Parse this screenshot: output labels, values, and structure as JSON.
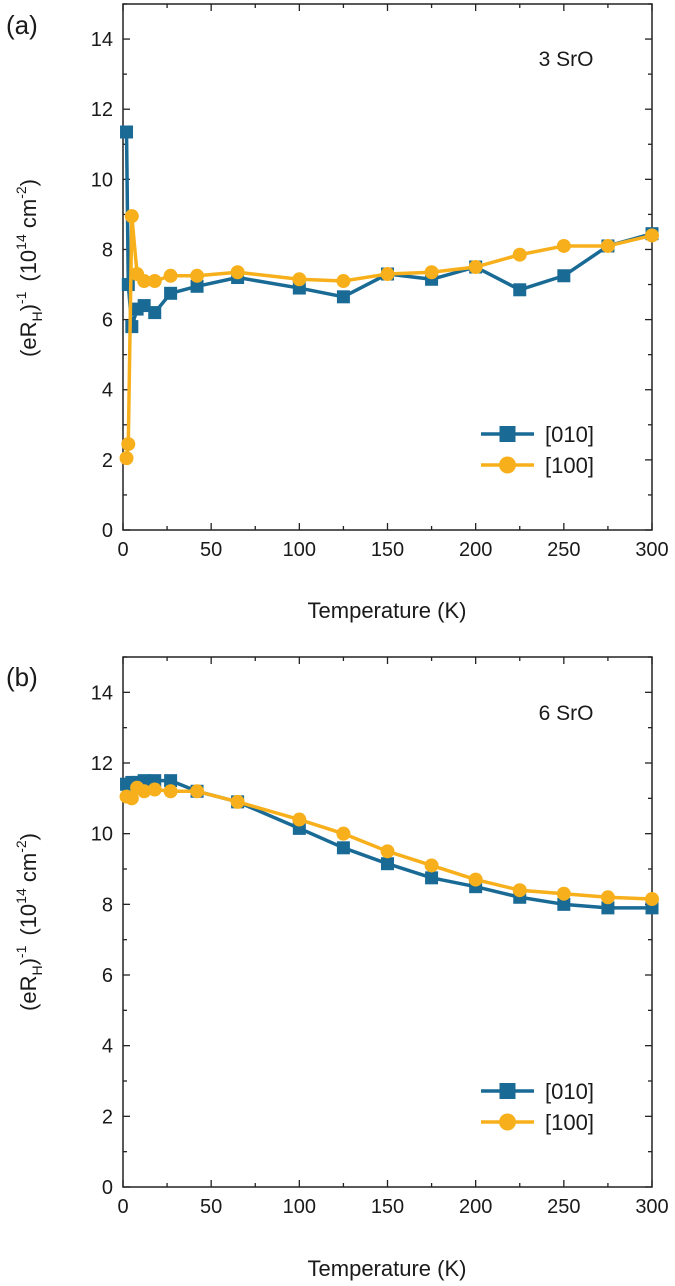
{
  "chart_data": [
    {
      "type": "line",
      "panel_label": "(a)",
      "annotation": "3 SrO",
      "xlabel": "Temperature (K)",
      "ylabel": {
        "prefix": "(eR",
        "sub": "H",
        "mid": ")",
        "sup1": "-1",
        "unit_pre": "(10",
        "sup2": "14",
        "unit_mid": " cm",
        "sup3": "-2",
        "unit_post": ")"
      },
      "xlim": [
        0,
        300
      ],
      "ylim": [
        0,
        15
      ],
      "xticks": [
        "0",
        "50",
        "100",
        "150",
        "200",
        "250",
        "300"
      ],
      "yticks": [
        "0",
        "2",
        "4",
        "6",
        "8",
        "10",
        "12",
        "14"
      ],
      "legend_position": "bottom-right",
      "series": [
        {
          "name": "[010]",
          "color": "#1a6a96",
          "marker": "square",
          "points": [
            [
              2,
              11.35
            ],
            [
              3,
              7.0
            ],
            [
              5,
              5.8
            ],
            [
              8,
              6.3
            ],
            [
              12,
              6.4
            ],
            [
              18,
              6.2
            ],
            [
              27,
              6.75
            ],
            [
              42,
              6.95
            ],
            [
              65,
              7.2
            ],
            [
              100,
              6.9
            ],
            [
              125,
              6.65
            ],
            [
              150,
              7.3
            ],
            [
              175,
              7.15
            ],
            [
              200,
              7.5
            ],
            [
              225,
              6.85
            ],
            [
              250,
              7.25
            ],
            [
              275,
              8.1
            ],
            [
              300,
              8.45
            ]
          ]
        },
        {
          "name": "[100]",
          "color": "#f7b01c",
          "marker": "circle",
          "points": [
            [
              2,
              2.05
            ],
            [
              3,
              2.45
            ],
            [
              5,
              8.95
            ],
            [
              8,
              7.3
            ],
            [
              12,
              7.1
            ],
            [
              18,
              7.1
            ],
            [
              27,
              7.25
            ],
            [
              42,
              7.25
            ],
            [
              65,
              7.35
            ],
            [
              100,
              7.15
            ],
            [
              125,
              7.1
            ],
            [
              150,
              7.3
            ],
            [
              175,
              7.35
            ],
            [
              200,
              7.5
            ],
            [
              225,
              7.85
            ],
            [
              250,
              8.1
            ],
            [
              275,
              8.1
            ],
            [
              300,
              8.4
            ]
          ]
        }
      ]
    },
    {
      "type": "line",
      "panel_label": "(b)",
      "annotation": "6 SrO",
      "xlabel": "Temperature (K)",
      "ylabel": {
        "prefix": "(eR",
        "sub": "H",
        "mid": ")",
        "sup1": "-1",
        "unit_pre": "(10",
        "sup2": "14",
        "unit_mid": " cm",
        "sup3": "-2",
        "unit_post": ")"
      },
      "xlim": [
        0,
        300
      ],
      "ylim": [
        0,
        15
      ],
      "xticks": [
        "0",
        "50",
        "100",
        "150",
        "200",
        "250",
        "300"
      ],
      "yticks": [
        "0",
        "2",
        "4",
        "6",
        "8",
        "10",
        "12",
        "14"
      ],
      "legend_position": "bottom-right",
      "series": [
        {
          "name": "[010]",
          "color": "#1a6a96",
          "marker": "square",
          "points": [
            [
              2,
              11.4
            ],
            [
              5,
              11.45
            ],
            [
              8,
              11.45
            ],
            [
              12,
              11.5
            ],
            [
              18,
              11.5
            ],
            [
              27,
              11.5
            ],
            [
              42,
              11.2
            ],
            [
              65,
              10.9
            ],
            [
              100,
              10.15
            ],
            [
              125,
              9.6
            ],
            [
              150,
              9.15
            ],
            [
              175,
              8.75
            ],
            [
              200,
              8.5
            ],
            [
              225,
              8.2
            ],
            [
              250,
              8.0
            ],
            [
              275,
              7.9
            ],
            [
              300,
              7.9
            ]
          ]
        },
        {
          "name": "[100]",
          "color": "#f7b01c",
          "marker": "circle",
          "points": [
            [
              2,
              11.05
            ],
            [
              5,
              11.0
            ],
            [
              8,
              11.3
            ],
            [
              12,
              11.2
            ],
            [
              18,
              11.25
            ],
            [
              27,
              11.2
            ],
            [
              42,
              11.2
            ],
            [
              65,
              10.9
            ],
            [
              100,
              10.4
            ],
            [
              125,
              10.0
            ],
            [
              150,
              9.5
            ],
            [
              175,
              9.1
            ],
            [
              200,
              8.7
            ],
            [
              225,
              8.4
            ],
            [
              250,
              8.3
            ],
            [
              275,
              8.2
            ],
            [
              300,
              8.15
            ]
          ]
        }
      ]
    }
  ]
}
